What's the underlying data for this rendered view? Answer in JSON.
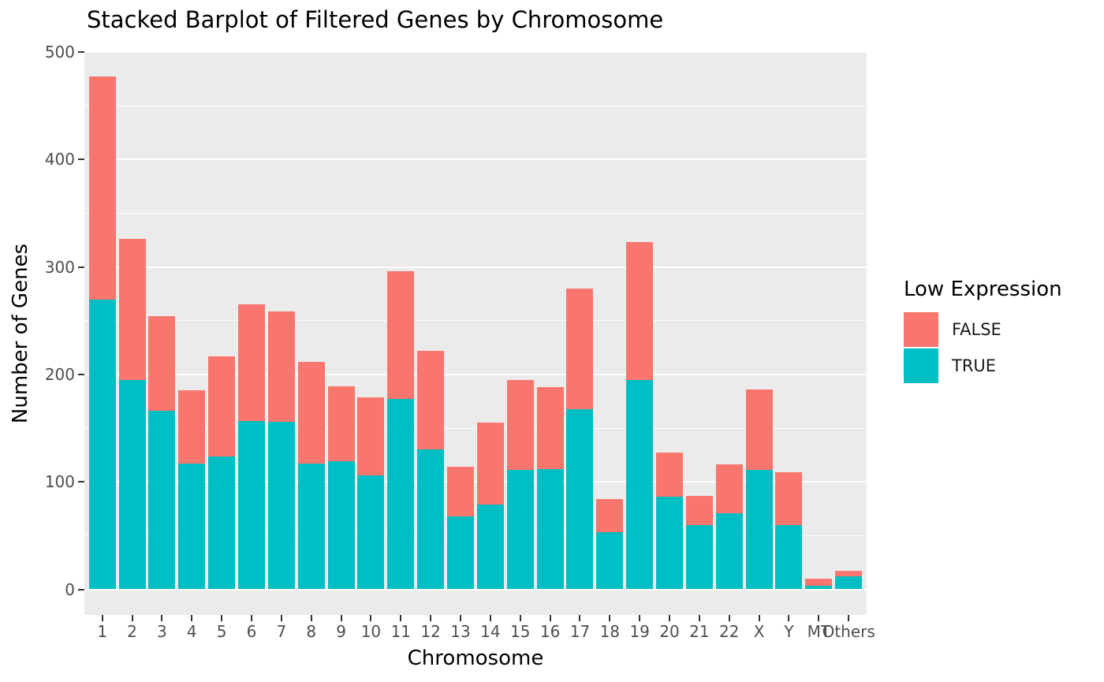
{
  "title": "Stacked Barplot of Filtered Genes by Chromosome",
  "chart_data": {
    "type": "bar",
    "stacked": true,
    "title": "Stacked Barplot of Filtered Genes by Chromosome",
    "xlabel": "Chromosome",
    "ylabel": "Number of Genes",
    "categories": [
      "1",
      "2",
      "3",
      "4",
      "5",
      "6",
      "7",
      "8",
      "9",
      "10",
      "11",
      "12",
      "13",
      "14",
      "15",
      "16",
      "17",
      "18",
      "19",
      "20",
      "21",
      "22",
      "X",
      "Y",
      "MT",
      "Others"
    ],
    "series": [
      {
        "name": "FALSE",
        "color": "#F8766D",
        "values": [
          207,
          131,
          88,
          68,
          93,
          108,
          103,
          95,
          70,
          73,
          119,
          92,
          46,
          76,
          84,
          76,
          112,
          31,
          128,
          41,
          27,
          45,
          75,
          49,
          7,
          5
        ]
      },
      {
        "name": "TRUE",
        "color": "#00BFC4",
        "values": [
          270,
          195,
          166,
          117,
          124,
          157,
          156,
          117,
          119,
          106,
          177,
          130,
          68,
          79,
          111,
          112,
          168,
          53,
          195,
          86,
          60,
          71,
          111,
          60,
          3,
          12
        ]
      }
    ],
    "totals": [
      477,
      326,
      254,
      185,
      217,
      265,
      259,
      212,
      189,
      179,
      296,
      222,
      114,
      155,
      195,
      188,
      280,
      84,
      323,
      127,
      87,
      116,
      186,
      109,
      10,
      17
    ],
    "ylim": [
      0,
      500
    ],
    "yticks": [
      0,
      100,
      200,
      300,
      400,
      500
    ],
    "minor_gridlines": [
      50,
      150,
      250,
      350,
      450
    ],
    "grid": "white major and minor gridlines on grey panel",
    "legend_position": "right",
    "panel_bg": "#EBEBEB",
    "grid_color": "#FFFFFF",
    "tick_color": "#333333",
    "tick_label_color": "#4D4D4D"
  },
  "legend": {
    "title": "Low Expression",
    "entries": [
      {
        "label": "FALSE",
        "color": "#F8766D"
      },
      {
        "label": "TRUE",
        "color": "#00BFC4"
      }
    ]
  }
}
